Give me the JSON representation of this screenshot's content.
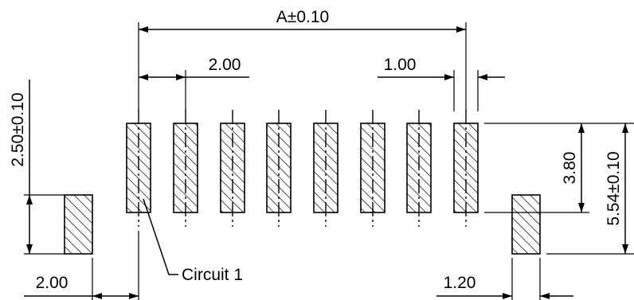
{
  "diagram": {
    "labels": {
      "overall_width": "A±0.10",
      "pitch": "2.00",
      "pad_width": "1.00",
      "row_offset": "2.50±0.10",
      "pad_length": "3.80",
      "overall_length": "5.54±0.10",
      "peg_offset": "2.00",
      "peg_width": "1.20",
      "circuit_callout": "Circuit 1"
    },
    "signal_pad_count": 8,
    "mounting_pad_count": 2
  }
}
